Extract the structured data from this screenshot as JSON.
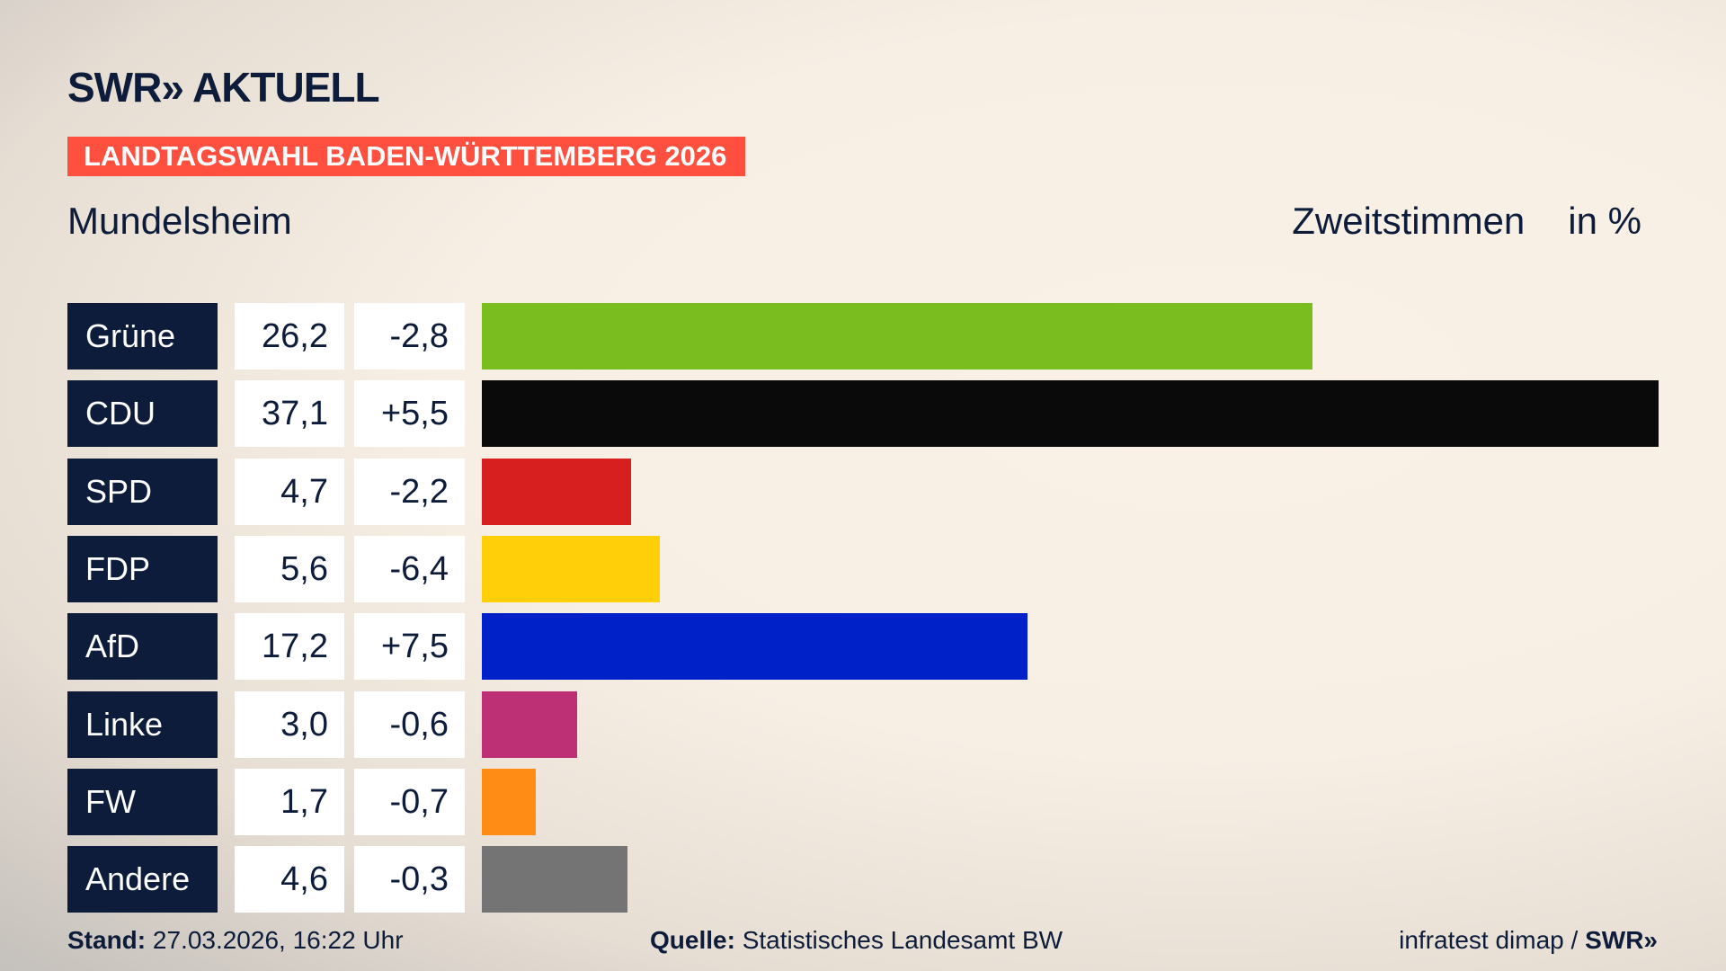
{
  "header": {
    "brand": "SWR» AKTUELL",
    "banner": "LANDTAGSWAHL BADEN-WÜRTTEMBERG 2026",
    "place": "Mundelsheim",
    "metric": "Zweitstimmen",
    "unit": "in %"
  },
  "chart_data": {
    "type": "bar",
    "orientation": "horizontal",
    "title": "Mundelsheim – Zweitstimmen in %",
    "xlim": [
      0,
      37.1
    ],
    "categories": [
      "Grüne",
      "CDU",
      "SPD",
      "FDP",
      "AfD",
      "Linke",
      "FW",
      "Andere"
    ],
    "values": [
      26.2,
      37.1,
      4.7,
      5.6,
      17.2,
      3.0,
      1.7,
      4.6
    ],
    "value_labels": [
      "26,2",
      "37,1",
      "4,7",
      "5,6",
      "17,2",
      "3,0",
      "1,7",
      "4,6"
    ],
    "diff_labels": [
      "-2,8",
      "+5,5",
      "-2,2",
      "-6,4",
      "+7,5",
      "-0,6",
      "-0,7",
      "-0,3"
    ],
    "diffs": [
      -2.8,
      5.5,
      -2.2,
      -6.4,
      7.5,
      -0.6,
      -0.7,
      -0.3
    ],
    "colors": [
      "#79bd1f",
      "#0a0a0a",
      "#d81f1f",
      "#ffcf0a",
      "#0021c8",
      "#bd3075",
      "#ff8c14",
      "#747474"
    ]
  },
  "footer": {
    "stand_label": "Stand:",
    "stand": "27.03.2026, 16:22 Uhr",
    "quelle_label": "Quelle:",
    "quelle": "Statistisches Landesamt BW",
    "credit": "infratest dimap /",
    "credit_brand": "SWR»"
  }
}
